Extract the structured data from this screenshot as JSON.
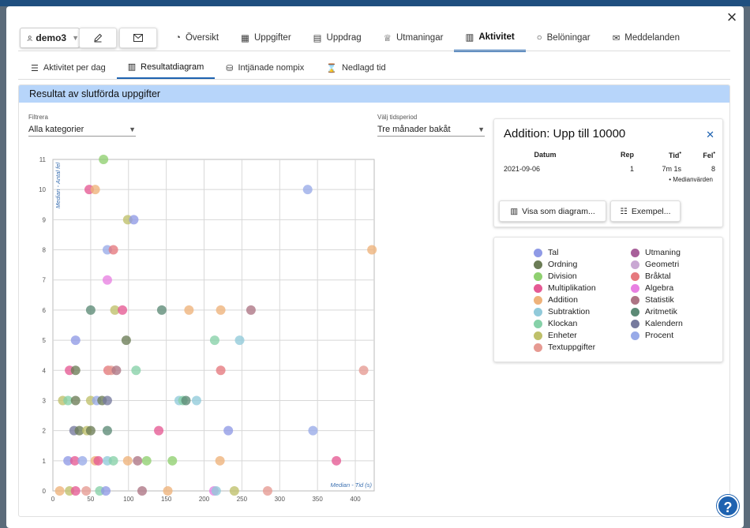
{
  "header": {
    "username": "demo3",
    "edit_icon": "pencil-icon",
    "mail_icon": "envelope-icon",
    "tabs": [
      {
        "label": "Översikt",
        "icon": "dashboard-icon"
      },
      {
        "label": "Uppgifter",
        "icon": "grid-icon"
      },
      {
        "label": "Uppdrag",
        "icon": "clipboard-icon"
      },
      {
        "label": "Utmaningar",
        "icon": "trophy-icon"
      },
      {
        "label": "Aktivitet",
        "icon": "bar-chart-icon",
        "active": true
      },
      {
        "label": "Belöningar",
        "icon": "circle-icon"
      },
      {
        "label": "Meddelanden",
        "icon": "envelope-icon"
      }
    ]
  },
  "subtabs": [
    {
      "label": "Aktivitet per dag",
      "icon": "list-icon"
    },
    {
      "label": "Resultatdiagram",
      "icon": "bar-chart-icon",
      "active": true
    },
    {
      "label": "Intjänade nompix",
      "icon": "coins-icon"
    },
    {
      "label": "Nedlagd tid",
      "icon": "hourglass-icon"
    }
  ],
  "section_title": "Resultat av slutförda uppgifter",
  "filter": {
    "label": "Filtrera",
    "value": "Alla kategorier"
  },
  "period": {
    "label": "Välj tidsperiod",
    "value": "Tre månader bakåt"
  },
  "detail": {
    "title": "Addition: Upp till 10000",
    "headers": {
      "datum": "Datum",
      "rep": "Rep",
      "tid": "Tid",
      "fel": "Fel"
    },
    "rows": [
      {
        "datum": "2021-09-06",
        "rep": "1",
        "tid": "7m 1s",
        "fel": "8"
      }
    ],
    "footnote": "Medianvärden",
    "btn_diagram": "Visa som diagram...",
    "btn_examples": "Exempel..."
  },
  "colors": {
    "Tal": "#8f9ae6",
    "Ordning": "#6b7c56",
    "Division": "#8fd070",
    "Multiplikation": "#e55a94",
    "Addition": "#eeb27a",
    "Subtraktion": "#91cada",
    "Klockan": "#86d1a8",
    "Enheter": "#bfc06a",
    "Textuppgifter": "#e69a92",
    "Utmaning": "#a85f9a",
    "Geometri": "#c9a8d3",
    "Bråktal": "#e6797e",
    "Algebra": "#e880e2",
    "Statistik": "#ad7484",
    "Aritmetik": "#5c8a76",
    "Kalendern": "#767a9e",
    "Procent": "#98aae8"
  },
  "chart_data": {
    "type": "scatter",
    "xlabel": "Median - Tid (s)",
    "ylabel": "Median - Antal fel",
    "xlim": [
      0,
      425
    ],
    "ylim": [
      0,
      11
    ],
    "xticks": [
      0,
      50,
      100,
      150,
      200,
      250,
      300,
      350,
      400
    ],
    "yticks": [
      0,
      1,
      2,
      3,
      4,
      5,
      6,
      7,
      8,
      9,
      10,
      11
    ],
    "grid": true,
    "legend": [
      "Tal",
      "Ordning",
      "Division",
      "Multiplikation",
      "Addition",
      "Subtraktion",
      "Klockan",
      "Enheter",
      "Textuppgifter",
      "Utmaning",
      "Geometri",
      "Bråktal",
      "Algebra",
      "Statistik",
      "Aritmetik",
      "Kalendern",
      "Procent"
    ],
    "points": [
      {
        "x": 67,
        "y": 11,
        "c": "Division"
      },
      {
        "x": 48,
        "y": 10,
        "c": "Multiplikation"
      },
      {
        "x": 56,
        "y": 10,
        "c": "Addition"
      },
      {
        "x": 337,
        "y": 10,
        "c": "Procent"
      },
      {
        "x": 99,
        "y": 9,
        "c": "Enheter"
      },
      {
        "x": 107,
        "y": 9,
        "c": "Tal"
      },
      {
        "x": 72,
        "y": 8,
        "c": "Procent"
      },
      {
        "x": 80,
        "y": 8,
        "c": "Bråktal"
      },
      {
        "x": 422,
        "y": 8,
        "c": "Addition"
      },
      {
        "x": 72,
        "y": 7,
        "c": "Algebra"
      },
      {
        "x": 50,
        "y": 6,
        "c": "Aritmetik"
      },
      {
        "x": 82,
        "y": 6,
        "c": "Enheter"
      },
      {
        "x": 92,
        "y": 6,
        "c": "Multiplikation"
      },
      {
        "x": 144,
        "y": 6,
        "c": "Aritmetik"
      },
      {
        "x": 180,
        "y": 6,
        "c": "Addition"
      },
      {
        "x": 222,
        "y": 6,
        "c": "Addition"
      },
      {
        "x": 262,
        "y": 6,
        "c": "Statistik"
      },
      {
        "x": 30,
        "y": 5,
        "c": "Tal"
      },
      {
        "x": 97,
        "y": 5,
        "c": "Ordning"
      },
      {
        "x": 214,
        "y": 5,
        "c": "Klockan"
      },
      {
        "x": 247,
        "y": 5,
        "c": "Subtraktion"
      },
      {
        "x": 22,
        "y": 4,
        "c": "Multiplikation"
      },
      {
        "x": 30,
        "y": 4,
        "c": "Ordning"
      },
      {
        "x": 73,
        "y": 4,
        "c": "Bråktal"
      },
      {
        "x": 77,
        "y": 4,
        "c": "Textuppgifter"
      },
      {
        "x": 84,
        "y": 4,
        "c": "Statistik"
      },
      {
        "x": 110,
        "y": 4,
        "c": "Klockan"
      },
      {
        "x": 222,
        "y": 4,
        "c": "Bråktal"
      },
      {
        "x": 411,
        "y": 4,
        "c": "Textuppgifter"
      },
      {
        "x": 13,
        "y": 3,
        "c": "Enheter"
      },
      {
        "x": 20,
        "y": 3,
        "c": "Klockan"
      },
      {
        "x": 30,
        "y": 3,
        "c": "Ordning"
      },
      {
        "x": 50,
        "y": 3,
        "c": "Enheter"
      },
      {
        "x": 58,
        "y": 3,
        "c": "Procent"
      },
      {
        "x": 65,
        "y": 3,
        "c": "Ordning"
      },
      {
        "x": 72,
        "y": 3,
        "c": "Kalendern"
      },
      {
        "x": 167,
        "y": 3,
        "c": "Subtraktion"
      },
      {
        "x": 172,
        "y": 3,
        "c": "Klockan"
      },
      {
        "x": 176,
        "y": 3,
        "c": "Aritmetik"
      },
      {
        "x": 190,
        "y": 3,
        "c": "Subtraktion"
      },
      {
        "x": 28,
        "y": 2,
        "c": "Kalendern"
      },
      {
        "x": 35,
        "y": 2,
        "c": "Ordning"
      },
      {
        "x": 45,
        "y": 2,
        "c": "Enheter"
      },
      {
        "x": 50,
        "y": 2,
        "c": "Ordning"
      },
      {
        "x": 72,
        "y": 2,
        "c": "Aritmetik"
      },
      {
        "x": 140,
        "y": 2,
        "c": "Multiplikation"
      },
      {
        "x": 232,
        "y": 2,
        "c": "Tal"
      },
      {
        "x": 344,
        "y": 2,
        "c": "Procent"
      },
      {
        "x": 20,
        "y": 1,
        "c": "Tal"
      },
      {
        "x": 29,
        "y": 1,
        "c": "Multiplikation"
      },
      {
        "x": 39,
        "y": 1,
        "c": "Procent"
      },
      {
        "x": 56,
        "y": 1,
        "c": "Addition"
      },
      {
        "x": 60,
        "y": 1,
        "c": "Multiplikation"
      },
      {
        "x": 72,
        "y": 1,
        "c": "Subtraktion"
      },
      {
        "x": 80,
        "y": 1,
        "c": "Klockan"
      },
      {
        "x": 99,
        "y": 1,
        "c": "Addition"
      },
      {
        "x": 112,
        "y": 1,
        "c": "Statistik"
      },
      {
        "x": 124,
        "y": 1,
        "c": "Division"
      },
      {
        "x": 158,
        "y": 1,
        "c": "Division"
      },
      {
        "x": 221,
        "y": 1,
        "c": "Addition"
      },
      {
        "x": 375,
        "y": 1,
        "c": "Multiplikation"
      },
      {
        "x": 9,
        "y": 0,
        "c": "Addition"
      },
      {
        "x": 22,
        "y": 0,
        "c": "Enheter"
      },
      {
        "x": 30,
        "y": 0,
        "c": "Multiplikation"
      },
      {
        "x": 44,
        "y": 0,
        "c": "Textuppgifter"
      },
      {
        "x": 62,
        "y": 0,
        "c": "Klockan"
      },
      {
        "x": 70,
        "y": 0,
        "c": "Tal"
      },
      {
        "x": 118,
        "y": 0,
        "c": "Statistik"
      },
      {
        "x": 152,
        "y": 0,
        "c": "Addition"
      },
      {
        "x": 213,
        "y": 0,
        "c": "Algebra"
      },
      {
        "x": 216,
        "y": 0,
        "c": "Subtraktion"
      },
      {
        "x": 240,
        "y": 0,
        "c": "Enheter"
      },
      {
        "x": 284,
        "y": 0,
        "c": "Textuppgifter"
      }
    ]
  }
}
